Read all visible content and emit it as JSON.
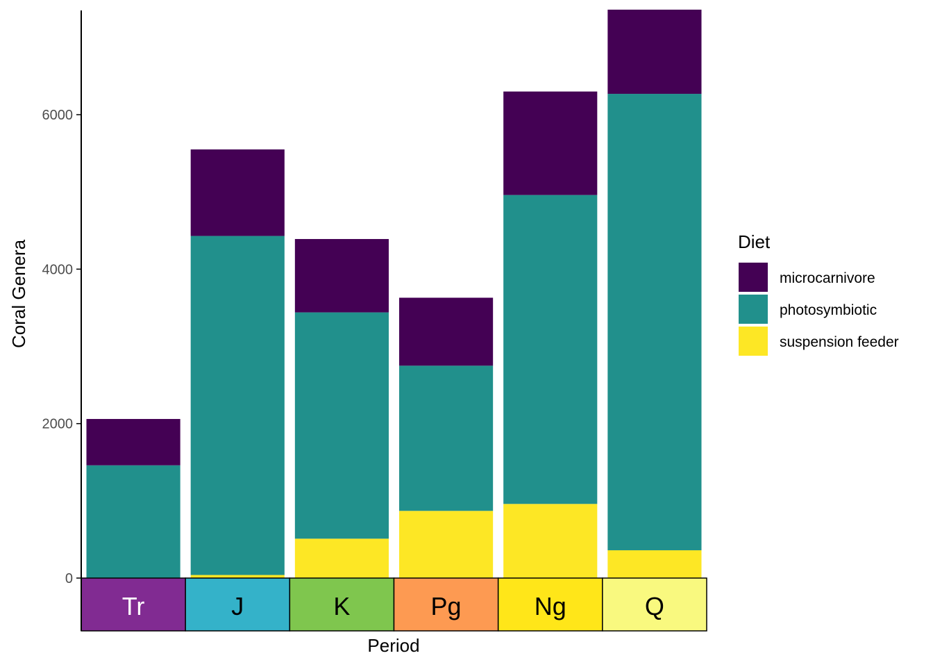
{
  "chart_data": {
    "type": "bar",
    "stacked": true,
    "xlabel": "Period",
    "ylabel": "Coral Genera",
    "ylim": [
      0,
      7350
    ],
    "yticks": [
      0,
      2000,
      4000,
      6000
    ],
    "grid": false,
    "categories": [
      "Tr",
      "J",
      "K",
      "Pg",
      "Ng",
      "Q"
    ],
    "category_colors": [
      "#812B92",
      "#34B2C9",
      "#7FC64E",
      "#FD9A52",
      "#FFE619",
      "#F9F97F"
    ],
    "category_text_colors": [
      "#ffffff",
      "#000000",
      "#000000",
      "#000000",
      "#000000",
      "#000000"
    ],
    "series": [
      {
        "name": "suspension feeder",
        "color": "#FDE725",
        "values": [
          0,
          40,
          510,
          870,
          960,
          360
        ]
      },
      {
        "name": "photosymbiotic",
        "color": "#21908C",
        "values": [
          1460,
          4390,
          2930,
          1880,
          4000,
          5910
        ]
      },
      {
        "name": "microcarnivore",
        "color": "#440154",
        "values": [
          600,
          1120,
          950,
          880,
          1340,
          1090
        ]
      }
    ],
    "legend": {
      "title": "Diet",
      "position": "right",
      "order": [
        "microcarnivore",
        "photosymbiotic",
        "suspension feeder"
      ]
    }
  }
}
